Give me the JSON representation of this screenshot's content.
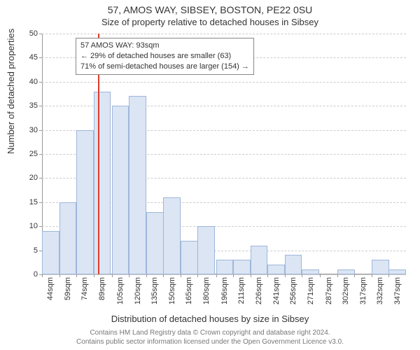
{
  "titles": {
    "main": "57, AMOS WAY, SIBSEY, BOSTON, PE22 0SU",
    "sub": "Size of property relative to detached houses in Sibsey"
  },
  "chart": {
    "type": "histogram",
    "ylabel": "Number of detached properties",
    "xlabel": "Distribution of detached houses by size in Sibsey",
    "ylim": [
      0,
      50
    ],
    "ytick_step": 5,
    "categories": [
      "44sqm",
      "59sqm",
      "74sqm",
      "89sqm",
      "105sqm",
      "120sqm",
      "135sqm",
      "150sqm",
      "165sqm",
      "180sqm",
      "196sqm",
      "211sqm",
      "226sqm",
      "241sqm",
      "256sqm",
      "271sqm",
      "287sqm",
      "302sqm",
      "317sqm",
      "332sqm",
      "347sqm"
    ],
    "values": [
      9,
      15,
      30,
      38,
      35,
      37,
      13,
      16,
      7,
      10,
      3,
      3,
      6,
      2,
      4,
      1,
      0,
      1,
      0,
      3,
      1
    ],
    "bar_fill": "#dbe5f4",
    "bar_border": "#9fb7da",
    "grid_color": "#cccccc",
    "axis_color": "#999999",
    "background": "#ffffff",
    "reference_line": {
      "at_sqm": 93,
      "color": "#dd3b2a"
    },
    "annotation": {
      "line1": "57 AMOS WAY: 93sqm",
      "line2": "← 29% of detached houses are smaller (63)",
      "line3": "71% of semi-detached houses are larger (154) →",
      "border": "#888888",
      "bg": "#ffffff"
    }
  },
  "footer": {
    "line1": "Contains HM Land Registry data © Crown copyright and database right 2024.",
    "line2": "Contains public sector information licensed under the Open Government Licence v3.0."
  },
  "style": {
    "title_fontsize": 14,
    "sub_fontsize": 13,
    "axis_label_fontsize": 13,
    "tick_fontsize": 11,
    "annotation_fontsize": 11,
    "footer_fontsize": 10,
    "text_color": "#333333",
    "footer_color": "#777777"
  }
}
